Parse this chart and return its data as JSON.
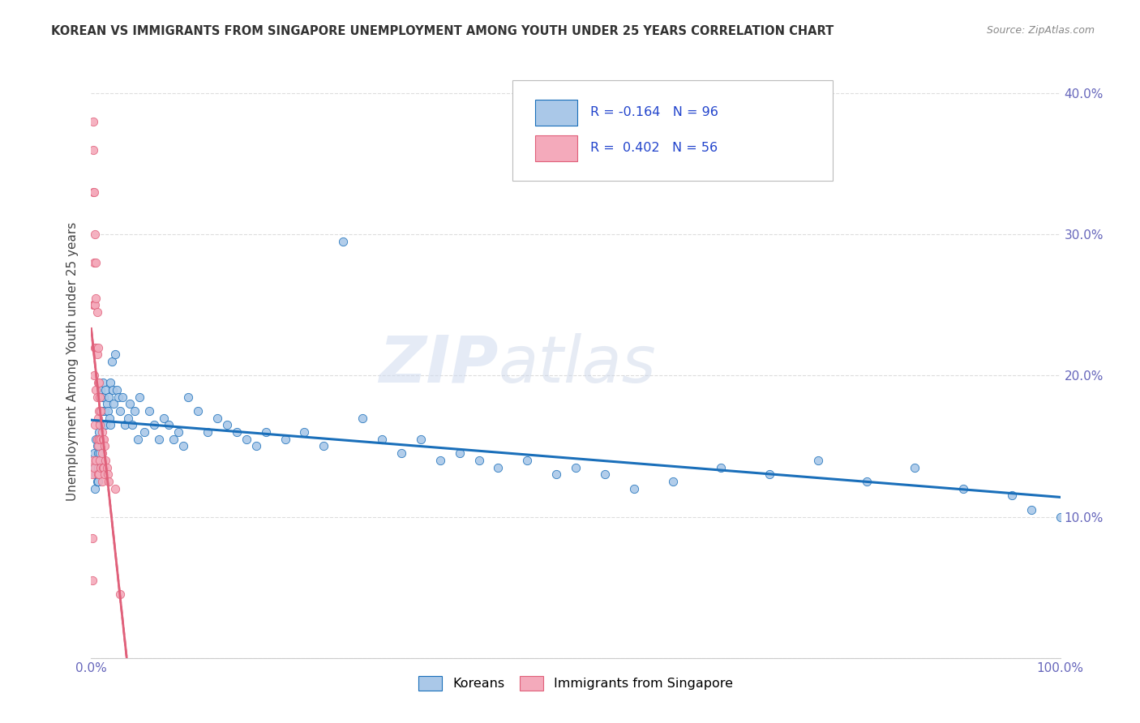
{
  "title": "KOREAN VS IMMIGRANTS FROM SINGAPORE UNEMPLOYMENT AMONG YOUTH UNDER 25 YEARS CORRELATION CHART",
  "source": "Source: ZipAtlas.com",
  "ylabel": "Unemployment Among Youth under 25 years",
  "watermark_zip": "ZIP",
  "watermark_atlas": "atlas",
  "legend_koreans_label": "Koreans",
  "legend_singapore_label": "Immigrants from Singapore",
  "koreans_R": "-0.164",
  "koreans_N": "96",
  "singapore_R": "0.402",
  "singapore_N": "56",
  "koreans_color": "#aac8e8",
  "koreans_line_color": "#1a6fba",
  "singapore_color": "#f4aabb",
  "singapore_line_color": "#e0607a",
  "background_color": "#ffffff",
  "grid_color": "#cccccc",
  "xlim": [
    0.0,
    1.0
  ],
  "ylim": [
    0.0,
    0.42
  ],
  "right_yticks": [
    0.1,
    0.2,
    0.3,
    0.4
  ],
  "right_yticklabels": [
    "10.0%",
    "20.0%",
    "30.0%",
    "40.0%"
  ],
  "koreans_x": [
    0.003,
    0.004,
    0.004,
    0.005,
    0.005,
    0.005,
    0.006,
    0.006,
    0.006,
    0.007,
    0.007,
    0.007,
    0.007,
    0.008,
    0.008,
    0.008,
    0.009,
    0.009,
    0.01,
    0.01,
    0.01,
    0.011,
    0.011,
    0.012,
    0.012,
    0.013,
    0.013,
    0.014,
    0.015,
    0.015,
    0.016,
    0.017,
    0.018,
    0.019,
    0.02,
    0.02,
    0.021,
    0.022,
    0.023,
    0.025,
    0.026,
    0.028,
    0.03,
    0.032,
    0.035,
    0.038,
    0.04,
    0.042,
    0.045,
    0.048,
    0.05,
    0.055,
    0.06,
    0.065,
    0.07,
    0.075,
    0.08,
    0.085,
    0.09,
    0.095,
    0.1,
    0.11,
    0.12,
    0.13,
    0.14,
    0.15,
    0.16,
    0.17,
    0.18,
    0.2,
    0.22,
    0.24,
    0.26,
    0.28,
    0.3,
    0.32,
    0.34,
    0.36,
    0.38,
    0.4,
    0.42,
    0.45,
    0.48,
    0.5,
    0.53,
    0.56,
    0.6,
    0.65,
    0.7,
    0.75,
    0.8,
    0.85,
    0.9,
    0.95,
    0.97,
    1.0
  ],
  "koreans_y": [
    0.145,
    0.135,
    0.12,
    0.155,
    0.14,
    0.13,
    0.15,
    0.14,
    0.125,
    0.155,
    0.145,
    0.135,
    0.125,
    0.16,
    0.15,
    0.14,
    0.155,
    0.145,
    0.19,
    0.175,
    0.165,
    0.185,
    0.165,
    0.195,
    0.175,
    0.185,
    0.165,
    0.175,
    0.19,
    0.165,
    0.18,
    0.175,
    0.185,
    0.17,
    0.195,
    0.165,
    0.21,
    0.19,
    0.18,
    0.215,
    0.19,
    0.185,
    0.175,
    0.185,
    0.165,
    0.17,
    0.18,
    0.165,
    0.175,
    0.155,
    0.185,
    0.16,
    0.175,
    0.165,
    0.155,
    0.17,
    0.165,
    0.155,
    0.16,
    0.15,
    0.185,
    0.175,
    0.16,
    0.17,
    0.165,
    0.16,
    0.155,
    0.15,
    0.16,
    0.155,
    0.16,
    0.15,
    0.295,
    0.17,
    0.155,
    0.145,
    0.155,
    0.14,
    0.145,
    0.14,
    0.135,
    0.14,
    0.13,
    0.135,
    0.13,
    0.12,
    0.125,
    0.135,
    0.13,
    0.14,
    0.125,
    0.135,
    0.12,
    0.115,
    0.105,
    0.1
  ],
  "singapore_x": [
    0.001,
    0.001,
    0.001,
    0.002,
    0.002,
    0.002,
    0.002,
    0.002,
    0.003,
    0.003,
    0.003,
    0.003,
    0.003,
    0.004,
    0.004,
    0.004,
    0.004,
    0.005,
    0.005,
    0.005,
    0.005,
    0.005,
    0.006,
    0.006,
    0.006,
    0.006,
    0.007,
    0.007,
    0.007,
    0.007,
    0.007,
    0.008,
    0.008,
    0.008,
    0.008,
    0.009,
    0.009,
    0.009,
    0.01,
    0.01,
    0.01,
    0.011,
    0.011,
    0.011,
    0.012,
    0.012,
    0.013,
    0.013,
    0.014,
    0.014,
    0.015,
    0.016,
    0.017,
    0.018,
    0.025,
    0.03
  ],
  "singapore_y": [
    0.13,
    0.085,
    0.055,
    0.38,
    0.36,
    0.33,
    0.25,
    0.14,
    0.33,
    0.28,
    0.25,
    0.2,
    0.135,
    0.3,
    0.25,
    0.22,
    0.165,
    0.28,
    0.255,
    0.22,
    0.19,
    0.14,
    0.245,
    0.215,
    0.185,
    0.155,
    0.22,
    0.195,
    0.17,
    0.15,
    0.13,
    0.195,
    0.175,
    0.155,
    0.13,
    0.185,
    0.165,
    0.14,
    0.175,
    0.155,
    0.135,
    0.16,
    0.145,
    0.125,
    0.155,
    0.135,
    0.155,
    0.135,
    0.15,
    0.13,
    0.14,
    0.135,
    0.13,
    0.125,
    0.12,
    0.045
  ]
}
